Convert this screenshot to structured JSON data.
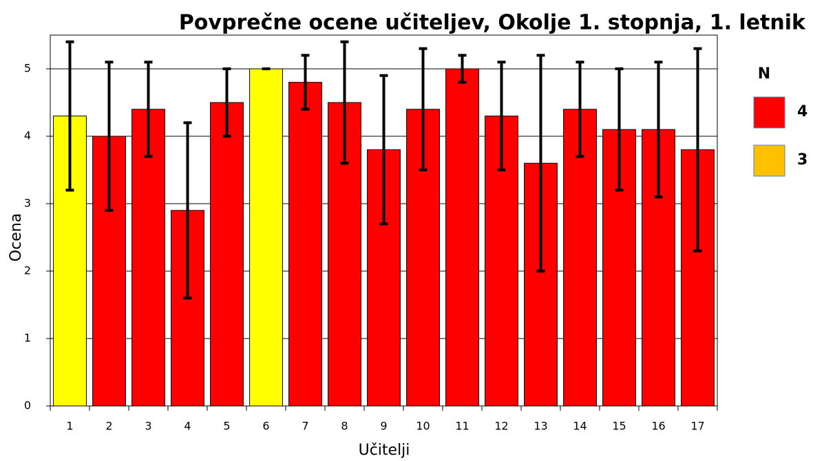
{
  "chart_data": {
    "type": "bar",
    "title": "Povprečne ocene učiteljev, Okolje 1. stopnja, 1. letnik",
    "x_label": "Učitelji",
    "y_label": "Ocena",
    "categories": [
      "1",
      "2",
      "3",
      "4",
      "5",
      "6",
      "7",
      "8",
      "9",
      "10",
      "11",
      "12",
      "13",
      "14",
      "15",
      "16",
      "17"
    ],
    "values": [
      4.3,
      4.0,
      4.4,
      2.9,
      4.5,
      5.0,
      4.8,
      4.5,
      3.8,
      4.4,
      5.0,
      4.3,
      3.6,
      4.4,
      4.1,
      4.1,
      3.8
    ],
    "errors": [
      1.1,
      1.1,
      0.7,
      1.3,
      0.5,
      0,
      0.4,
      0.9,
      1.1,
      0.9,
      0.2,
      0.8,
      1.6,
      0.7,
      0.9,
      1.0,
      1.5
    ],
    "colors": [
      "#ffff00",
      "#ff0000",
      "#ff0000",
      "#ff0000",
      "#ff0000",
      "#ffff00",
      "#ff0000",
      "#ff0000",
      "#ff0000",
      "#ff0000",
      "#ff0000",
      "#ff0000",
      "#ff0000",
      "#ff0000",
      "#ff0000",
      "#ff0000",
      "#ff0000"
    ],
    "ylim": [
      0,
      5.5
    ],
    "yticks": [
      0,
      1,
      2,
      3,
      4,
      5
    ],
    "grid": true,
    "legend": {
      "title": "N",
      "entries": [
        {
          "label": "4",
          "color": "#ff0000"
        },
        {
          "label": "3",
          "color": "#ffc000"
        }
      ]
    }
  }
}
